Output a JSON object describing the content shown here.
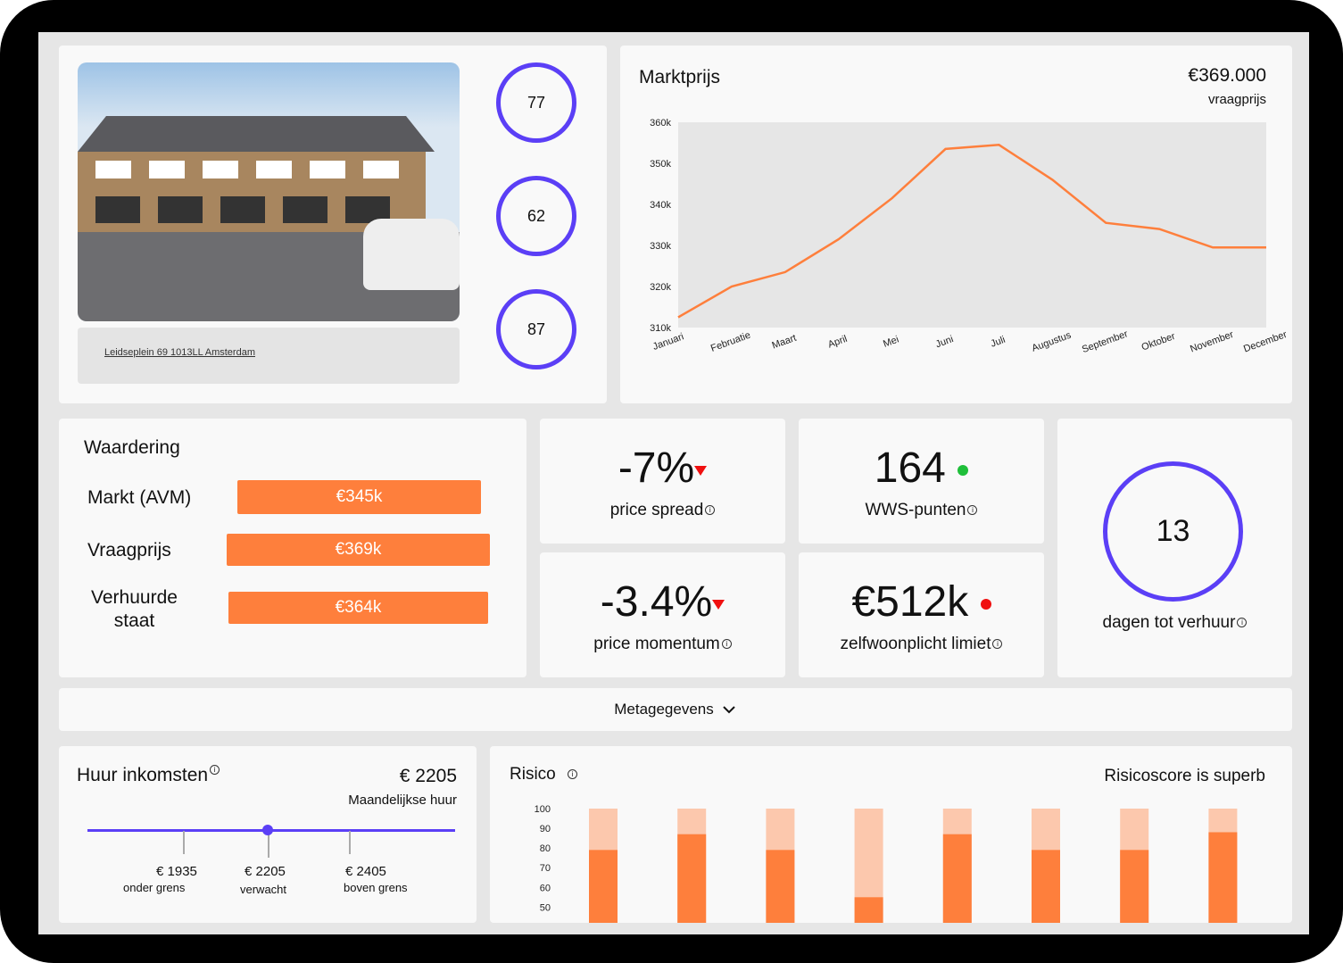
{
  "property": {
    "address": "Leidseplein 69 1013LL Amsterdam",
    "scores": [
      "77",
      "62",
      "87"
    ]
  },
  "market": {
    "title": "Marktprijs",
    "price": "€369.000",
    "price_label": "vraagprijs"
  },
  "valuation": {
    "title": "Waardering",
    "rows": [
      {
        "label": "Markt (AVM)",
        "value": "€345k"
      },
      {
        "label": "Vraagprijs",
        "value": "€369k"
      },
      {
        "label": "Verhuurde staat",
        "value": "€364k"
      }
    ]
  },
  "kpis": {
    "price_spread": {
      "value": "-7%",
      "label": "price spread",
      "indicator": "down",
      "color": "#f01010"
    },
    "wws": {
      "value": "164",
      "label": "WWS-punten",
      "indicator": "dot",
      "color": "#1fbf3a"
    },
    "price_momentum": {
      "value": "-3.4%",
      "label": "price momentum",
      "indicator": "down",
      "color": "#f01010"
    },
    "zelfwoon": {
      "value": "€512k",
      "label": "zelfwoonplicht limiet",
      "indicator": "dot",
      "color": "#f01010"
    },
    "days": {
      "value": "13",
      "label": "dagen tot verhuur"
    }
  },
  "meta": {
    "label": "Metagegevens"
  },
  "rent": {
    "title": "Huur inkomsten",
    "value": "€ 2205",
    "value_label": "Maandelijkse huur",
    "range_fraction": 0.5,
    "markers": [
      {
        "value": "€ 1935",
        "label": "onder grens"
      },
      {
        "value": "€ 2205",
        "label": "verwacht"
      },
      {
        "value": "€ 2405",
        "label": "boven grens"
      }
    ]
  },
  "risk": {
    "title": "Risico",
    "status": "Risicoscore is superb"
  },
  "colors": {
    "accent": "#5b3ff6",
    "orange": "#fe7f3c",
    "orange_light": "#fcc8ad"
  },
  "chart_data": [
    {
      "type": "line",
      "title": "Marktprijs",
      "xlabel": "",
      "ylabel": "",
      "categories": [
        "Januari",
        "Februatie",
        "Maart",
        "April",
        "Mei",
        "Juni",
        "Juli",
        "Augustus",
        "September",
        "Oktober",
        "November",
        "December"
      ],
      "values": [
        312.5,
        320,
        323.5,
        331.5,
        341.5,
        353.5,
        354.5,
        346,
        335.5,
        334,
        329.5,
        329.5
      ],
      "yticks": [
        "310k",
        "320k",
        "330k",
        "340k",
        "350k",
        "360k"
      ],
      "ylim": [
        310,
        360
      ],
      "grid": false
    },
    {
      "type": "bar",
      "title": "Risico",
      "stacked": true,
      "values": [
        79,
        87,
        79,
        55,
        87,
        79,
        79,
        88
      ],
      "max": 100,
      "yticks": [
        "50",
        "60",
        "70",
        "80",
        "90",
        "100"
      ],
      "ylim": [
        42,
        100
      ]
    }
  ]
}
